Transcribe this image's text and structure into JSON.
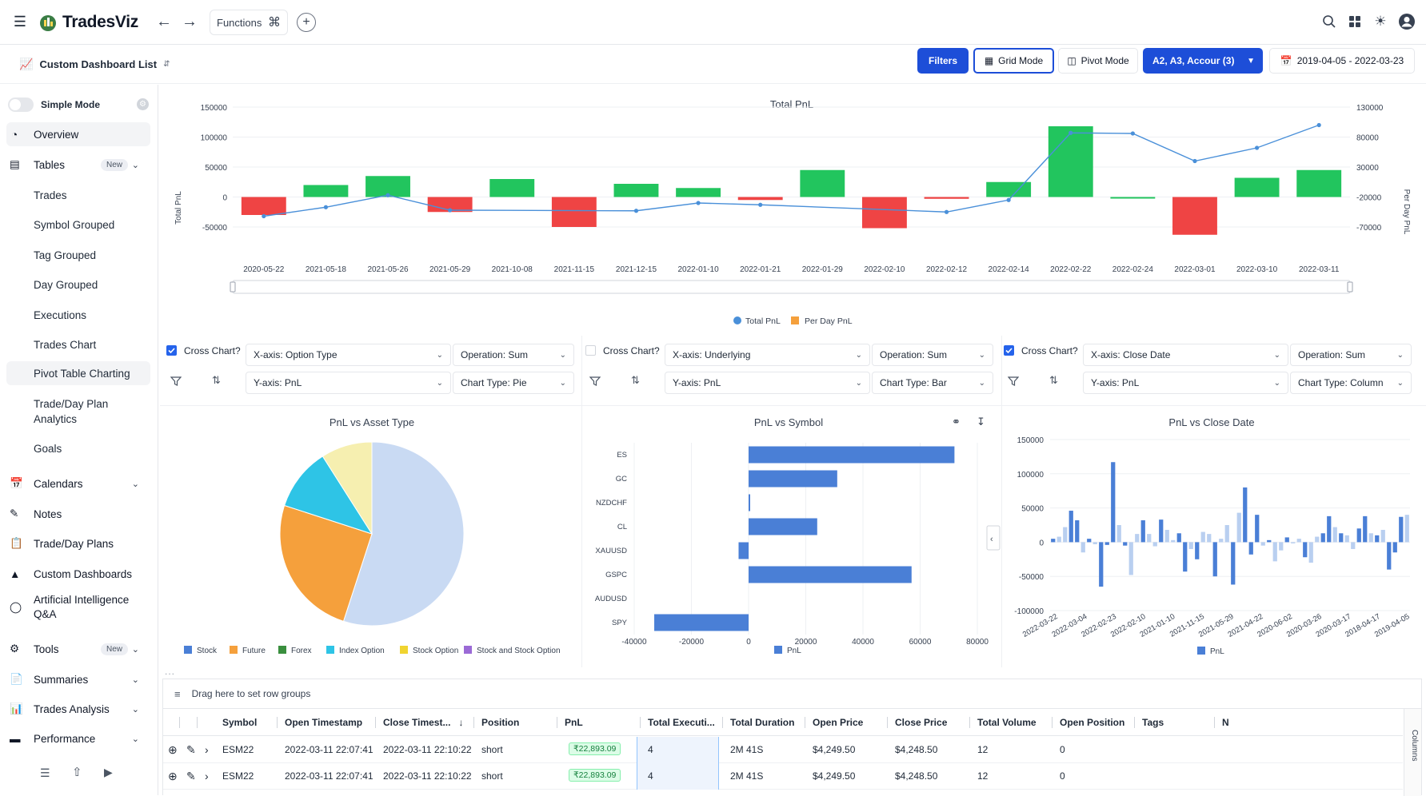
{
  "app": {
    "name": "TradesViz"
  },
  "topbar": {
    "functions_label": "Functions"
  },
  "subbar": {
    "dashboard_list": "Custom Dashboard List",
    "filters": "Filters",
    "grid_mode": "Grid Mode",
    "pivot_mode": "Pivot Mode",
    "accounts": "A2, A3, Accour (3)",
    "date_range": "2019-04-05 - 2022-03-23"
  },
  "sidebar": {
    "simple_mode": "Simple Mode",
    "overview": "Overview",
    "tables": "Tables",
    "new_badge": "New",
    "table_items": [
      "Trades",
      "Symbol Grouped",
      "Tag Grouped",
      "Day Grouped",
      "Executions",
      "Trades Chart",
      "Pivot Table Charting"
    ],
    "trade_plan_line1": "Trade/Day Plan",
    "trade_plan_line2": "Analytics",
    "goals": "Goals",
    "calendars": "Calendars",
    "notes": "Notes",
    "trade_day_plans": "Trade/Day Plans",
    "custom_dashboards": "Custom Dashboards",
    "ai_line1": "Artificial Intelligence",
    "ai_line2": "Q&A",
    "tools": "Tools",
    "summaries": "Summaries",
    "trades_analysis": "Trades Analysis",
    "performance": "Performance"
  },
  "colors": {
    "primary": "#2563eb",
    "green": "#22c55e",
    "red": "#ef4444",
    "line": "#4a90d9",
    "orange": "#f5a03c"
  },
  "chart_data": [
    {
      "type": "bar",
      "title": "Total PnL",
      "ylabel": "Total PnL",
      "y2label": "Per Day PnL",
      "categories": [
        "2020-05-22",
        "2021-05-18",
        "2021-05-26",
        "2021-05-29",
        "2021-10-08",
        "2021-11-15",
        "2021-12-15",
        "2022-01-10",
        "2022-01-21",
        "2022-01-29",
        "2022-02-10",
        "2022-02-12",
        "2022-02-14",
        "2022-02-22",
        "2022-02-24",
        "2022-03-01",
        "2022-03-10",
        "2022-03-11"
      ],
      "left_ticks": [
        "150000",
        "100000",
        "50000",
        "0",
        "-50000"
      ],
      "right_ticks": [
        "130000",
        "80000",
        "30000",
        "-20000",
        "-70000"
      ],
      "ylim": [
        -50000,
        150000
      ],
      "y2lim": [
        -70000,
        130000
      ],
      "series": [
        {
          "name": "Per Day PnL",
          "type": "bar",
          "values": [
            -30000,
            20000,
            35000,
            -25000,
            30000,
            -50000,
            22000,
            15000,
            -5000,
            45000,
            -52000,
            -3000,
            25000,
            118000,
            0,
            -63000,
            32000,
            45000
          ]
        },
        {
          "name": "Total PnL",
          "type": "line",
          "values": [
            -52000,
            -37000,
            -17000,
            -42000,
            null,
            null,
            -43000,
            -30000,
            -33000,
            null,
            null,
            -45000,
            -25000,
            87000,
            86000,
            40000,
            62000,
            100000
          ]
        }
      ],
      "legend": [
        "Total PnL",
        "Per Day PnL"
      ]
    },
    {
      "type": "pie",
      "title": "PnL vs Asset Type",
      "slices": [
        {
          "name": "Stock",
          "value": 55
        },
        {
          "name": "Future",
          "value": 25
        },
        {
          "name": "Index Option",
          "value": 11
        },
        {
          "name": "Stock Option",
          "value": 9
        }
      ],
      "legend": [
        "Stock",
        "Future",
        "Forex",
        "Index Option",
        "Stock Option",
        "Stock and Stock Option"
      ]
    },
    {
      "type": "bar",
      "orientation": "horizontal",
      "title": "PnL vs Symbol",
      "categories": [
        "ES",
        "GC",
        "NZDCHF",
        "CL",
        "XAUUSD",
        "GSPC",
        "AUDUSD",
        "SPY"
      ],
      "values": [
        72000,
        31000,
        500,
        24000,
        -3500,
        57000,
        0,
        -33000
      ],
      "xticks": [
        "-40000",
        "-20000",
        "0",
        "20000",
        "40000",
        "60000",
        "80000"
      ],
      "xlim": [
        -40000,
        80000
      ],
      "legend": [
        "PnL"
      ]
    },
    {
      "type": "bar",
      "title": "PnL vs Close Date",
      "yticks": [
        "150000",
        "100000",
        "50000",
        "0",
        "-50000",
        "-100000"
      ],
      "ylim": [
        -100000,
        150000
      ],
      "xticks": [
        "2022-03-22",
        "2022-03-04",
        "2022-02-23",
        "2022-02-10",
        "2021-01-10",
        "2021-11-15",
        "2021-05-29",
        "2021-04-22",
        "2020-06-02",
        "2020-03-26",
        "2020-03-17",
        "2018-04-17",
        "2019-04-05"
      ],
      "values": [
        5000,
        8000,
        22000,
        46000,
        32000,
        -15000,
        5000,
        -3000,
        -65000,
        -4000,
        117000,
        25000,
        -5000,
        -48000,
        12000,
        32000,
        12000,
        -6000,
        33000,
        18000,
        3000,
        13000,
        -43000,
        -10000,
        -25000,
        15000,
        12000,
        -50000,
        5000,
        25000,
        -62000,
        43000,
        80000,
        -18000,
        40000,
        -5000,
        3000,
        -28000,
        -12000,
        7000,
        0,
        5000,
        -22000,
        -30000,
        8000,
        13000,
        38000,
        22000,
        13000,
        10000,
        -10000,
        20000,
        38000,
        13000,
        10000,
        18000,
        -40000,
        -15000,
        37000,
        40000
      ],
      "legend": [
        "PnL"
      ]
    }
  ],
  "controls": [
    {
      "cross_chart": "Cross Chart?",
      "x_axis": "X-axis: Option Type",
      "operation": "Operation: Sum",
      "y_axis": "Y-axis: PnL",
      "chart_type": "Chart Type: Pie",
      "checked": true
    },
    {
      "cross_chart": "Cross Chart?",
      "x_axis": "X-axis: Underlying",
      "operation": "Operation: Sum",
      "y_axis": "Y-axis: PnL",
      "chart_type": "Chart Type: Bar",
      "checked": false
    },
    {
      "cross_chart": "Cross Chart?",
      "x_axis": "X-axis: Close Date",
      "operation": "Operation: Sum",
      "y_axis": "Y-axis: PnL",
      "chart_type": "Chart Type: Column",
      "checked": true
    }
  ],
  "grid": {
    "group_hint": "Drag here to set row groups",
    "more_dots": "...",
    "columns_label": "Columns",
    "headers": [
      "Symbol",
      "Open Timestamp",
      "Close Timest...",
      "Position",
      "PnL",
      "Total Executi...",
      "Total Duration",
      "Open Price",
      "Close Price",
      "Total Volume",
      "Open Position",
      "Tags",
      "N"
    ],
    "rows": [
      [
        "ESM22",
        "2022-03-11 22:07:41",
        "2022-03-11 22:10:22",
        "short",
        "₹22,893.09",
        "4",
        "2M 41S",
        "$4,249.50",
        "$4,248.50",
        "12",
        "0",
        ""
      ],
      [
        "ESM22",
        "2022-03-11 22:07:41",
        "2022-03-11 22:10:22",
        "short",
        "₹22,893.09",
        "4",
        "2M 41S",
        "$4,249.50",
        "$4,248.50",
        "12",
        "0",
        ""
      ]
    ]
  }
}
